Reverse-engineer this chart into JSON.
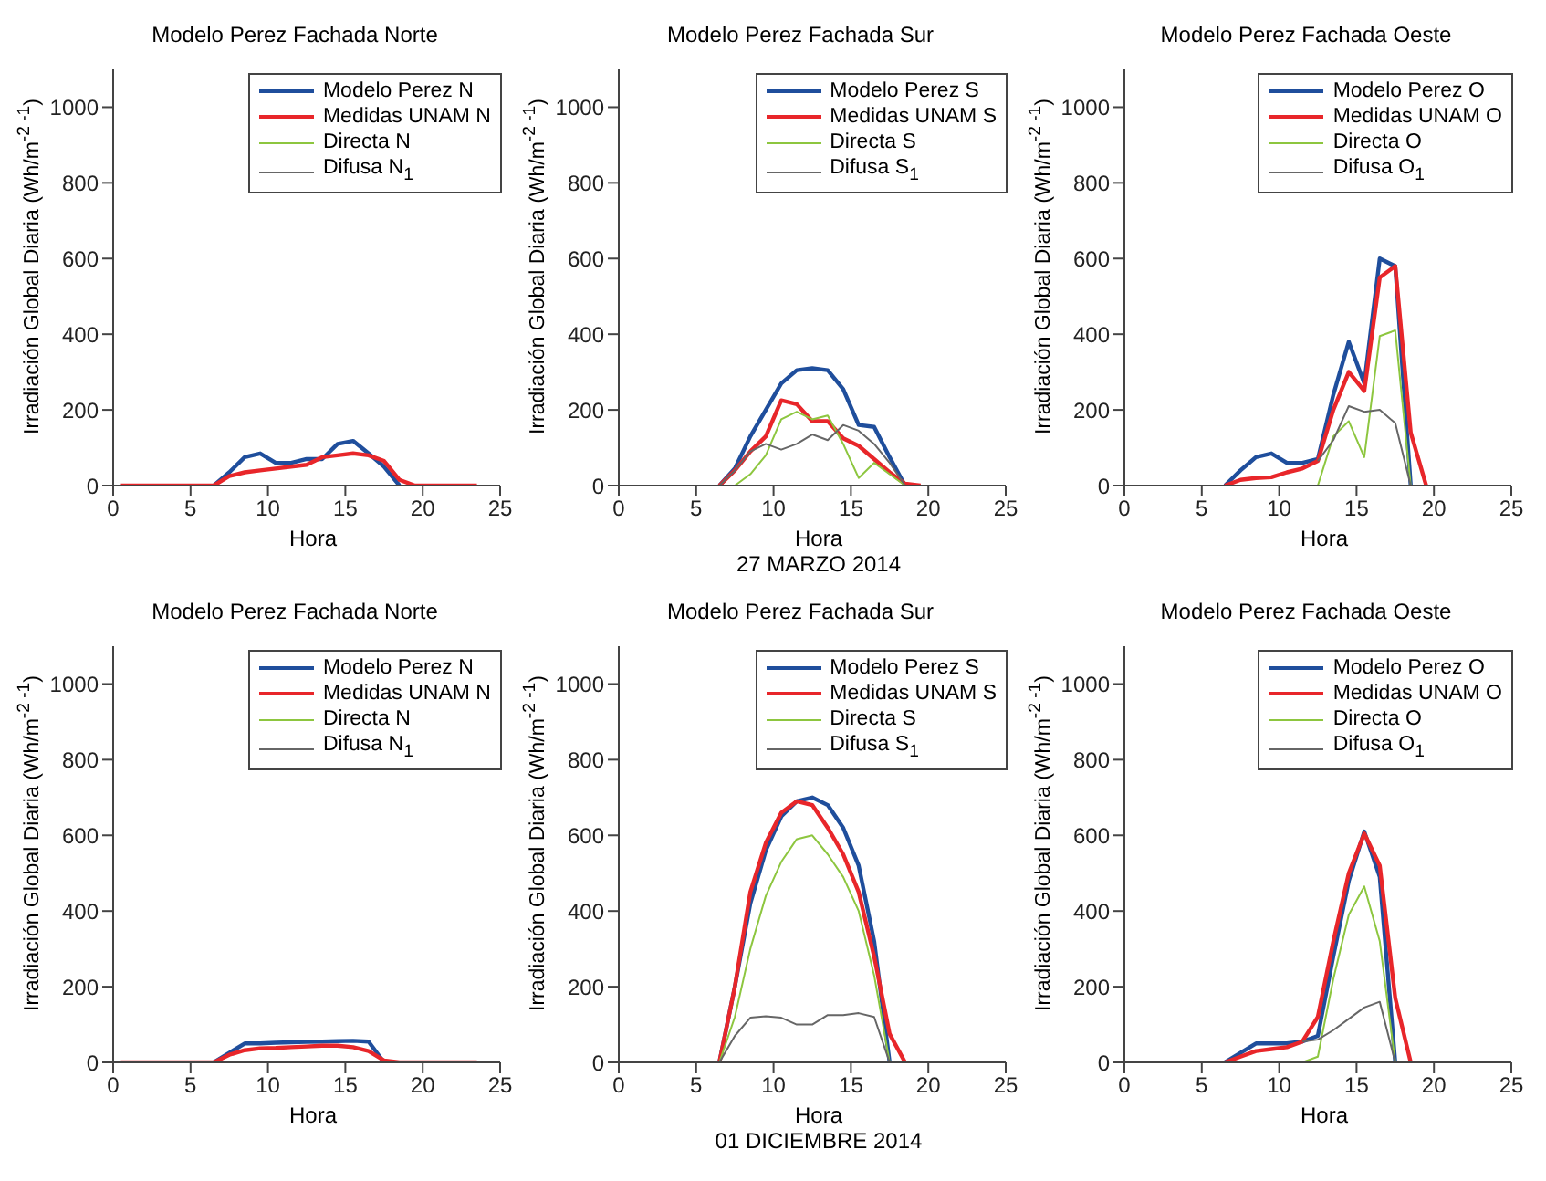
{
  "chart_data": [
    {
      "type": "line",
      "title": "Modelo Perez Fachada Norte",
      "xlabel": "Hora",
      "ylabel": "Irradiación Global Diaria (Wh/m$^{-2 -1}$)",
      "xlim": [
        0,
        25
      ],
      "xticks": [
        0,
        5,
        10,
        15,
        20,
        25
      ],
      "ylim": [
        0,
        1100
      ],
      "yticks": [
        0,
        200,
        400,
        600,
        800,
        1000
      ],
      "legend": "top right",
      "grid": false,
      "x": [
        0.5,
        1.5,
        2.5,
        3.5,
        4.5,
        5.5,
        6.5,
        7.5,
        8.5,
        9.5,
        10.5,
        11.5,
        12.5,
        13.5,
        14.5,
        15.5,
        16.5,
        17.5,
        18.5,
        19.5,
        20.5,
        21.5,
        22.5,
        23.5
      ],
      "series": [
        {
          "name": "Modelo Perez N",
          "color": "#1f4e9c",
          "values": [
            null,
            null,
            null,
            null,
            null,
            null,
            0,
            35,
            75,
            85,
            60,
            60,
            70,
            70,
            110,
            118,
            85,
            50,
            0,
            null,
            null,
            null,
            null,
            null
          ]
        },
        {
          "name": "Medidas UNAM N",
          "color": "#e8262a",
          "values": [
            0,
            0,
            0,
            0,
            0,
            0,
            0,
            25,
            35,
            40,
            45,
            50,
            55,
            75,
            80,
            85,
            80,
            65,
            15,
            0,
            0,
            0,
            0,
            0
          ]
        },
        {
          "name": "Directa N",
          "color": "#8dc63f",
          "values": [
            null,
            null,
            null,
            null,
            null,
            null,
            null,
            null,
            null,
            null,
            null,
            null,
            null,
            null,
            null,
            null,
            null,
            null,
            null,
            null,
            null,
            null,
            null,
            null
          ]
        },
        {
          "name": "Difusa N$_{1}$",
          "color": "#666666",
          "values": [
            null,
            null,
            null,
            null,
            null,
            null,
            null,
            null,
            null,
            null,
            null,
            null,
            null,
            null,
            null,
            null,
            null,
            null,
            null,
            null,
            null,
            null,
            null,
            null
          ]
        }
      ]
    },
    {
      "type": "line",
      "title": "Modelo Perez Fachada Sur",
      "xlabel": "Hora",
      "ylabel": "Irradiación Global Diaria (Wh/m$^{-2 -1}$)",
      "annotations": [
        "27 MARZO 2014"
      ],
      "xlim": [
        0,
        25
      ],
      "xticks": [
        0,
        5,
        10,
        15,
        20,
        25
      ],
      "ylim": [
        0,
        1100
      ],
      "yticks": [
        0,
        200,
        400,
        600,
        800,
        1000
      ],
      "legend": "top right",
      "grid": false,
      "x": [
        0.5,
        1.5,
        2.5,
        3.5,
        4.5,
        5.5,
        6.5,
        7.5,
        8.5,
        9.5,
        10.5,
        11.5,
        12.5,
        13.5,
        14.5,
        15.5,
        16.5,
        17.5,
        18.5,
        19.5,
        20.5,
        21.5,
        22.5,
        23.5
      ],
      "series": [
        {
          "name": "Modelo Perez S",
          "color": "#1f4e9c",
          "values": [
            null,
            null,
            null,
            null,
            null,
            null,
            0,
            45,
            130,
            200,
            270,
            305,
            310,
            305,
            255,
            160,
            155,
            75,
            0,
            null,
            null,
            null,
            null,
            null
          ]
        },
        {
          "name": "Medidas UNAM S",
          "color": "#e8262a",
          "values": [
            null,
            null,
            null,
            null,
            null,
            null,
            0,
            40,
            90,
            130,
            225,
            215,
            170,
            170,
            125,
            105,
            70,
            35,
            5,
            0,
            null,
            null,
            null,
            null
          ]
        },
        {
          "name": "Directa S",
          "color": "#8dc63f",
          "values": [
            null,
            null,
            null,
            null,
            null,
            null,
            null,
            0,
            30,
            80,
            175,
            195,
            175,
            185,
            110,
            20,
            60,
            30,
            0,
            null,
            null,
            null,
            null,
            null
          ]
        },
        {
          "name": "Difusa S$_{1}$",
          "color": "#666666",
          "values": [
            0,
            0,
            0,
            0,
            0,
            0,
            0,
            40,
            90,
            110,
            95,
            110,
            135,
            120,
            160,
            145,
            110,
            60,
            0,
            0,
            0,
            0,
            0,
            0
          ]
        }
      ]
    },
    {
      "type": "line",
      "title": "Modelo Perez Fachada Oeste",
      "xlabel": "Hora",
      "ylabel": "Irradiación Global Diaria (Wh/m$^{-2 -1}$)",
      "xlim": [
        0,
        25
      ],
      "xticks": [
        0,
        5,
        10,
        15,
        20,
        25
      ],
      "ylim": [
        0,
        1100
      ],
      "yticks": [
        0,
        200,
        400,
        600,
        800,
        1000
      ],
      "legend": "top right",
      "grid": false,
      "x": [
        6.5,
        7.5,
        8.5,
        9.5,
        10.5,
        11.5,
        12.5,
        13.5,
        14.5,
        15.5,
        16.5,
        17.5,
        18.5,
        19.5,
        20.5,
        21.5,
        22.5,
        23.5
      ],
      "series": [
        {
          "name": "Modelo Perez O",
          "color": "#1f4e9c",
          "values": [
            0,
            40,
            75,
            85,
            60,
            60,
            70,
            240,
            380,
            270,
            600,
            580,
            0,
            null,
            null,
            null,
            null,
            null
          ]
        },
        {
          "name": "Medidas UNAM O",
          "color": "#e8262a",
          "values": [
            0,
            15,
            20,
            22,
            35,
            45,
            65,
            200,
            300,
            250,
            550,
            580,
            140,
            0,
            null,
            null,
            null,
            null
          ]
        },
        {
          "name": "Directa O",
          "color": "#8dc63f",
          "values": [
            null,
            null,
            null,
            null,
            null,
            null,
            0,
            130,
            170,
            75,
            395,
            410,
            0,
            null,
            null,
            null,
            null,
            null
          ]
        },
        {
          "name": "Difusa O$_{1}$",
          "color": "#666666",
          "values": [
            null,
            null,
            null,
            null,
            null,
            null,
            65,
            120,
            210,
            195,
            200,
            165,
            0,
            0,
            0,
            0,
            0,
            0
          ]
        }
      ]
    },
    {
      "type": "line",
      "title": "Modelo Perez Fachada Norte",
      "xlabel": "Hora",
      "ylabel": "Irradiación Global Diaria (Wh/m$^{-2 -1}$)",
      "xlim": [
        0,
        25
      ],
      "xticks": [
        0,
        5,
        10,
        15,
        20,
        25
      ],
      "ylim": [
        0,
        1100
      ],
      "yticks": [
        0,
        200,
        400,
        600,
        800,
        1000
      ],
      "legend": "top right",
      "grid": false,
      "x": [
        0.5,
        1.5,
        2.5,
        3.5,
        4.5,
        5.5,
        6.5,
        7.5,
        8.5,
        9.5,
        10.5,
        11.5,
        12.5,
        13.5,
        14.5,
        15.5,
        16.5,
        17.5,
        18.5,
        19.5,
        20.5,
        21.5,
        22.5,
        23.5
      ],
      "series": [
        {
          "name": "Modelo Perez N",
          "color": "#1f4e9c",
          "values": [
            null,
            null,
            null,
            null,
            null,
            null,
            0,
            25,
            50,
            50,
            52,
            53,
            54,
            55,
            56,
            57,
            55,
            0,
            null,
            null,
            null,
            null,
            null,
            null
          ]
        },
        {
          "name": "Medidas UNAM N",
          "color": "#e8262a",
          "values": [
            0,
            0,
            0,
            0,
            0,
            0,
            0,
            20,
            32,
            37,
            38,
            40,
            42,
            44,
            44,
            40,
            30,
            5,
            0,
            0,
            0,
            0,
            0,
            0
          ]
        },
        {
          "name": "Directa N",
          "color": "#8dc63f",
          "values": [
            null,
            null,
            null,
            null,
            null,
            null,
            null,
            null,
            null,
            null,
            null,
            null,
            null,
            null,
            null,
            null,
            null,
            null,
            null,
            null,
            null,
            null,
            null,
            null
          ]
        },
        {
          "name": "Difusa N$_{1}$",
          "color": "#666666",
          "values": [
            null,
            null,
            null,
            null,
            null,
            null,
            null,
            null,
            null,
            null,
            null,
            null,
            null,
            null,
            null,
            null,
            null,
            null,
            null,
            null,
            null,
            null,
            null,
            null
          ]
        }
      ]
    },
    {
      "type": "line",
      "title": "Modelo Perez Fachada Sur",
      "xlabel": "Hora",
      "ylabel": "Irradiación Global Diaria (Wh/m$^{-2 -1}$)",
      "annotations": [
        "01 DICIEMBRE 2014"
      ],
      "xlim": [
        0,
        25
      ],
      "xticks": [
        0,
        5,
        10,
        15,
        20,
        25
      ],
      "ylim": [
        0,
        1100
      ],
      "yticks": [
        0,
        200,
        400,
        600,
        800,
        1000
      ],
      "legend": "top right",
      "grid": false,
      "x": [
        0.5,
        1.5,
        2.5,
        3.5,
        4.5,
        5.5,
        6.5,
        7.5,
        8.5,
        9.5,
        10.5,
        11.5,
        12.5,
        13.5,
        14.5,
        15.5,
        16.5,
        17.5,
        18.5,
        19.5,
        20.5,
        21.5,
        22.5,
        23.5
      ],
      "series": [
        {
          "name": "Modelo Perez S",
          "color": "#1f4e9c",
          "values": [
            null,
            null,
            null,
            null,
            null,
            null,
            0,
            200,
            420,
            560,
            650,
            690,
            700,
            680,
            620,
            520,
            320,
            0,
            null,
            null,
            null,
            null,
            null,
            null
          ]
        },
        {
          "name": "Medidas UNAM S",
          "color": "#e8262a",
          "values": [
            null,
            null,
            null,
            null,
            null,
            null,
            0,
            200,
            450,
            580,
            660,
            690,
            680,
            620,
            550,
            450,
            280,
            75,
            0,
            null,
            null,
            null,
            null,
            null
          ]
        },
        {
          "name": "Directa S",
          "color": "#8dc63f",
          "values": [
            null,
            null,
            null,
            null,
            null,
            null,
            0,
            120,
            300,
            440,
            530,
            590,
            600,
            550,
            490,
            400,
            230,
            0,
            null,
            null,
            null,
            null,
            null,
            null
          ]
        },
        {
          "name": "Difusa S$_{1}$",
          "color": "#666666",
          "values": [
            0,
            0,
            0,
            0,
            0,
            0,
            0,
            70,
            118,
            122,
            118,
            100,
            100,
            125,
            125,
            130,
            120,
            0,
            0,
            0,
            0,
            0,
            0,
            0
          ]
        }
      ]
    },
    {
      "type": "line",
      "title": "Modelo Perez Fachada Oeste",
      "xlabel": "Hora",
      "ylabel": "Irradiación Global Diaria (Wh/m$^{-2 -1}$)",
      "xlim": [
        0,
        25
      ],
      "xticks": [
        0,
        5,
        10,
        15,
        20,
        25
      ],
      "ylim": [
        0,
        1100
      ],
      "yticks": [
        0,
        200,
        400,
        600,
        800,
        1000
      ],
      "legend": "top right",
      "grid": false,
      "x": [
        6.5,
        7.5,
        8.5,
        9.5,
        10.5,
        11.5,
        12.5,
        13.5,
        14.5,
        15.5,
        16.5,
        17.5,
        18.5,
        19.5,
        20.5,
        21.5,
        22.5,
        23.5
      ],
      "series": [
        {
          "name": "Modelo Perez O",
          "color": "#1f4e9c",
          "values": [
            0,
            25,
            50,
            50,
            50,
            55,
            70,
            280,
            480,
            610,
            490,
            0,
            null,
            null,
            null,
            null,
            null,
            null
          ]
        },
        {
          "name": "Medidas UNAM O",
          "color": "#e8262a",
          "values": [
            0,
            15,
            30,
            35,
            40,
            55,
            120,
            320,
            500,
            605,
            520,
            170,
            0,
            null,
            null,
            null,
            null,
            null
          ]
        },
        {
          "name": "Directa O",
          "color": "#8dc63f",
          "values": [
            null,
            null,
            null,
            null,
            null,
            0,
            15,
            220,
            390,
            465,
            320,
            0,
            null,
            null,
            null,
            null,
            null,
            null
          ]
        },
        {
          "name": "Difusa O$_{1}$",
          "color": "#666666",
          "values": [
            null,
            null,
            null,
            null,
            null,
            55,
            60,
            85,
            115,
            145,
            160,
            0,
            0,
            0,
            0,
            0,
            0,
            0
          ]
        }
      ]
    }
  ]
}
